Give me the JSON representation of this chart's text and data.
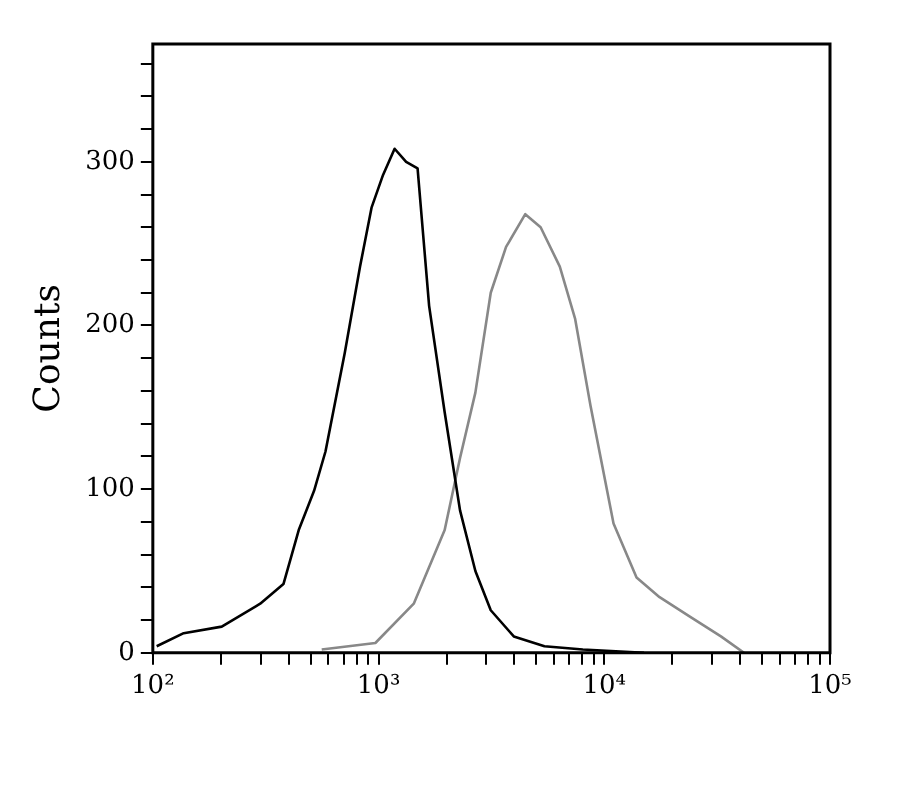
{
  "chart_data": {
    "type": "line",
    "ylabel": "Counts",
    "log": "x",
    "grid": false,
    "legend": false,
    "marker": "none",
    "line_style": "solid",
    "xlim": [
      100,
      100000
    ],
    "ylim": [
      0,
      372
    ],
    "xticks": [
      {
        "value": 100,
        "label": "10²"
      },
      {
        "value": 200,
        "label": null
      },
      {
        "value": 300,
        "label": null
      },
      {
        "value": 400,
        "label": null
      },
      {
        "value": 500,
        "label": null
      },
      {
        "value": 600,
        "label": null
      },
      {
        "value": 700,
        "label": null
      },
      {
        "value": 800,
        "label": null
      },
      {
        "value": 900,
        "label": null
      },
      {
        "value": 1000,
        "label": "10³"
      },
      {
        "value": 2000,
        "label": null
      },
      {
        "value": 3000,
        "label": null
      },
      {
        "value": 4000,
        "label": null
      },
      {
        "value": 5000,
        "label": null
      },
      {
        "value": 6000,
        "label": null
      },
      {
        "value": 7000,
        "label": null
      },
      {
        "value": 8000,
        "label": null
      },
      {
        "value": 9000,
        "label": null
      },
      {
        "value": 10000,
        "label": "10⁴"
      },
      {
        "value": 20000,
        "label": null
      },
      {
        "value": 30000,
        "label": null
      },
      {
        "value": 40000,
        "label": null
      },
      {
        "value": 50000,
        "label": null
      },
      {
        "value": 60000,
        "label": null
      },
      {
        "value": 70000,
        "label": null
      },
      {
        "value": 80000,
        "label": null
      },
      {
        "value": 90000,
        "label": null
      },
      {
        "value": 100000,
        "label": "10⁵"
      }
    ],
    "yticks": [
      0,
      {
        "value": 20,
        "label": null
      },
      {
        "value": 40,
        "label": null
      },
      {
        "value": 60,
        "label": null
      },
      {
        "value": 80,
        "label": null
      },
      100,
      {
        "value": 120,
        "label": null
      },
      {
        "value": 140,
        "label": null
      },
      {
        "value": 160,
        "label": null
      },
      {
        "value": 180,
        "label": null
      },
      200,
      {
        "value": 220,
        "label": null
      },
      {
        "value": 240,
        "label": null
      },
      {
        "value": 260,
        "label": null
      },
      {
        "value": 280,
        "label": null
      },
      300,
      {
        "value": 320,
        "label": null
      },
      {
        "value": 340,
        "label": null
      },
      {
        "value": 360,
        "label": null
      }
    ],
    "series": [
      {
        "color": "#000000",
        "x": [
          104,
          137,
          202,
          299,
          379,
          443,
          518,
          582,
          708,
          828,
          931,
          1047,
          1178,
          1325,
          1489,
          1675,
          1963,
          2296,
          2685,
          3141,
          3973,
          5433,
          8035,
          15000
        ],
        "values": [
          4,
          12,
          16,
          30,
          42,
          75,
          99,
          123,
          183,
          236,
          272,
          292,
          308,
          300,
          296,
          212,
          147,
          87,
          50,
          26,
          10,
          4,
          2,
          0
        ]
      },
      {
        "color": "#888888",
        "x": [
          560,
          968,
          1432,
          1963,
          2296,
          2685,
          3141,
          3672,
          4467,
          5224,
          6353,
          7430,
          8690,
          10990,
          13900,
          17580,
          24040,
          32870,
          41590
        ],
        "values": [
          2,
          6,
          30,
          75,
          119,
          159,
          220,
          248,
          268,
          260,
          236,
          204,
          151,
          79,
          46,
          34,
          22,
          10,
          0
        ]
      }
    ]
  }
}
